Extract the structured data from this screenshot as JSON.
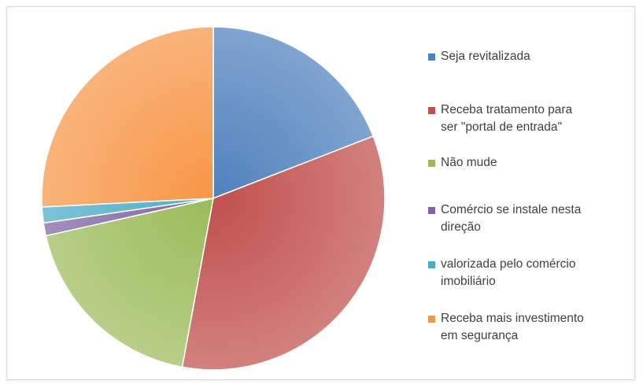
{
  "chart_data": {
    "type": "pie",
    "start_angle_deg": 0,
    "direction": "clockwise",
    "legend_position": "right",
    "slices": [
      {
        "label": "Seja revitalizada",
        "value": 19.1,
        "color": "#4f81bd"
      },
      {
        "label": "Receba tratamento para ser \"portal de entrada\"",
        "value": 33.8,
        "color": "#c0504d"
      },
      {
        "label": "Não mude",
        "value": 18.6,
        "color": "#9bbb59"
      },
      {
        "label": "Comércio se instale nesta direção",
        "value": 1.2,
        "color": "#8064a2"
      },
      {
        "label": "valorizada pelo comércio imobiliário",
        "value": 1.5,
        "color": "#4bacc6"
      },
      {
        "label": "Receba mais investimento em segurança",
        "value": 25.8,
        "color": "#f79646"
      }
    ]
  },
  "legend": {
    "items": [
      {
        "text": "Seja revitalizada"
      },
      {
        "text": "Receba tratamento para\nser \"portal de entrada\""
      },
      {
        "text": "Não mude"
      },
      {
        "text": "Comércio se instale nesta\ndireção"
      },
      {
        "text": "valorizada pelo comércio\nimobiliário"
      },
      {
        "text": "Receba mais investimento\nem segurança"
      }
    ]
  }
}
